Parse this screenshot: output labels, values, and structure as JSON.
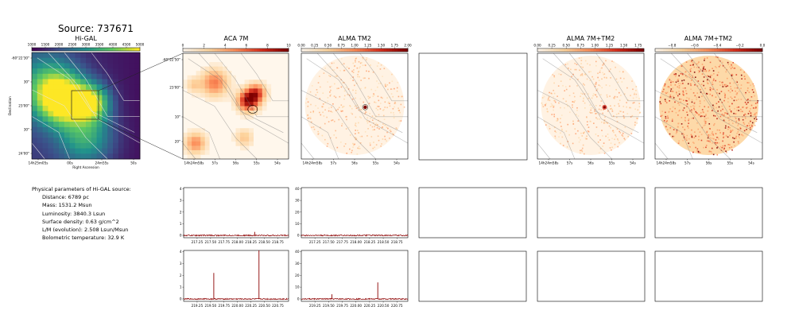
{
  "title": "Source: 737671",
  "panel_titles": {
    "higal": "Hi-GAL",
    "aca": "ACA 7M",
    "alma_tm2": "ALMA TM2",
    "alma_7m_tm2": "ALMA 7M+TM2",
    "alma_7m_tm2_resid": "ALMA 7M+TM2"
  },
  "params": {
    "heading": "Physical parameters of Hi-GAL source:",
    "distance": "Distance: 6789 pc",
    "mass": "Mass: 1531.2 Msun",
    "luminosity": "Luminosity: 3840.3 Lsun",
    "surface_density": "Surface density: 0.63 g/cm^2",
    "lm": "L/M (evolution): 2.508 Lsun/Msun",
    "tbol": "Bolometric temperature: 32.9 K"
  },
  "chart_data": [
    {
      "type": "heatmap",
      "panel": "Hi-GAL",
      "colorbar_ticks": [
        "1000",
        "1500",
        "2000",
        "2500",
        "3000",
        "3500",
        "4000",
        "4500",
        "5000"
      ],
      "colorbar_range": [
        1000,
        5000
      ],
      "y_ticks": [
        "-60°22'30\"",
        "30\"",
        "23'00\"",
        "30\"",
        "24'00\""
      ],
      "x_ticks": [
        "14h25m05s",
        "00s",
        "24m55s",
        "50s"
      ],
      "xlabel": "Right Ascension",
      "ylabel": "Declination"
    },
    {
      "type": "heatmap",
      "panel": "ACA 7M",
      "colorbar_ticks": [
        "0",
        "2",
        "4",
        "6",
        "8",
        "10"
      ],
      "colorbar_range": [
        0,
        10
      ],
      "y_ticks": [
        "-60°22'50\"",
        "23'00\"",
        "10\"",
        "20\""
      ],
      "x_ticks": [
        "14h24m58s",
        "57s",
        "56s",
        "55s",
        "54s"
      ]
    },
    {
      "type": "heatmap",
      "panel": "ALMA TM2",
      "colorbar_ticks": [
        "0.00",
        "0.25",
        "0.50",
        "0.75",
        "1.00",
        "1.25",
        "1.50",
        "1.75",
        "2.00"
      ],
      "colorbar_range": [
        0,
        2
      ],
      "x_ticks": [
        "14h24m58s",
        "57s",
        "56s",
        "55s",
        "54s"
      ]
    },
    {
      "type": "heatmap",
      "panel": "ALMA 7M+TM2",
      "colorbar_ticks": [
        "0.00",
        "0.25",
        "0.50",
        "0.75",
        "1.00",
        "1.25",
        "1.50",
        "1.75"
      ],
      "colorbar_range": [
        0,
        1.85
      ],
      "x_ticks": [
        "14h24m58s",
        "57s",
        "56s",
        "55s",
        "54s"
      ]
    },
    {
      "type": "heatmap",
      "panel": "ALMA 7M+TM2 (right)",
      "colorbar_ticks": [
        "−0.8",
        "−0.6",
        "−0.4",
        "−0.2",
        "0.0"
      ],
      "colorbar_range": [
        -0.95,
        0
      ],
      "x_ticks": [
        "14h24m58s",
        "57s",
        "56s",
        "55s",
        "54s"
      ]
    },
    {
      "type": "line",
      "panel": "ACA 7M spectrum (upper)",
      "x_ticks": [
        "217.25",
        "217.50",
        "217.75",
        "218.00",
        "218.25",
        "218.50",
        "218.75"
      ],
      "y_ticks": [
        "0",
        "1",
        "2",
        "3",
        "4"
      ],
      "xlim": [
        217.0,
        218.95
      ],
      "ylim": [
        -0.2,
        4.1
      ],
      "peaks": [
        {
          "x": 218.32,
          "y": 0.3
        }
      ]
    },
    {
      "type": "line",
      "panel": "ALMA TM2 spectrum (upper)",
      "x_ticks": [
        "217.25",
        "217.50",
        "217.75",
        "218.00",
        "218.25",
        "218.50",
        "218.75"
      ],
      "y_ticks": [
        "0",
        "10",
        "20",
        "30",
        "40"
      ],
      "xlim": [
        217.0,
        218.95
      ],
      "ylim": [
        -2,
        41
      ],
      "peaks": []
    },
    {
      "type": "line",
      "panel": "ACA 7M spectrum (lower)",
      "x_ticks": [
        "219.25",
        "219.50",
        "219.75",
        "220.00",
        "220.25",
        "220.50",
        "220.75"
      ],
      "y_ticks": [
        "0",
        "1",
        "2",
        "3",
        "4"
      ],
      "xlim": [
        219.0,
        220.95
      ],
      "ylim": [
        -0.2,
        4.1
      ],
      "peaks": [
        {
          "x": 219.56,
          "y": 2.2
        },
        {
          "x": 220.4,
          "y": 4.1
        }
      ]
    },
    {
      "type": "line",
      "panel": "ALMA TM2 spectrum (lower)",
      "x_ticks": [
        "219.25",
        "219.50",
        "219.75",
        "220.00",
        "220.25",
        "220.50",
        "220.75"
      ],
      "y_ticks": [
        "0",
        "10",
        "20",
        "30",
        "40"
      ],
      "xlim": [
        219.0,
        220.95
      ],
      "ylim": [
        -2,
        41
      ],
      "peaks": [
        {
          "x": 219.56,
          "y": 4
        },
        {
          "x": 220.4,
          "y": 14
        }
      ]
    }
  ]
}
